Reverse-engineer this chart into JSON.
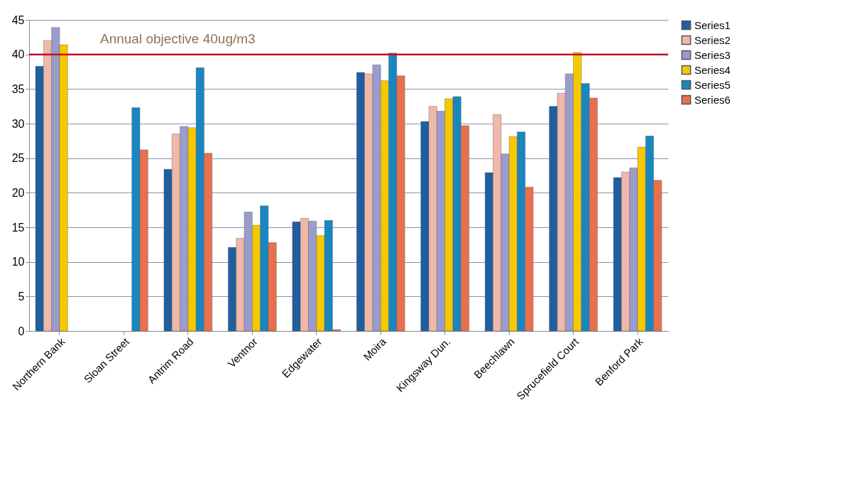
{
  "chart_data": {
    "type": "bar",
    "categories": [
      "Northern Bank",
      "Sloan Street",
      "Antrim Road",
      "Ventnor",
      "Edgewater",
      "Moira",
      "Kingsway Dun.",
      "Beechlawn",
      "Sprucefield Court",
      "Benford Park"
    ],
    "series": [
      {
        "name": "Series1",
        "color": "#1f5fa0",
        "values": [
          38.3,
          null,
          23.4,
          12.1,
          15.8,
          37.4,
          30.3,
          22.9,
          32.5,
          22.2
        ]
      },
      {
        "name": "Series2",
        "color": "#f0b8a8",
        "values": [
          42.0,
          null,
          28.5,
          13.4,
          16.3,
          37.2,
          32.5,
          31.3,
          34.4,
          23.0
        ]
      },
      {
        "name": "Series3",
        "color": "#9a9ccc",
        "values": [
          43.9,
          null,
          29.6,
          17.2,
          15.9,
          38.5,
          31.8,
          25.6,
          37.2,
          23.6
        ]
      },
      {
        "name": "Series4",
        "color": "#f5c800",
        "values": [
          41.4,
          null,
          29.4,
          15.3,
          13.8,
          36.2,
          33.6,
          28.1,
          40.3,
          26.6
        ]
      },
      {
        "name": "Series5",
        "color": "#1a86c0",
        "values": [
          null,
          32.3,
          38.1,
          18.1,
          16.0,
          40.2,
          33.9,
          28.8,
          35.8,
          28.2
        ]
      },
      {
        "name": "Series6",
        "color": "#e8704f",
        "values": [
          null,
          26.2,
          25.7,
          12.8,
          0.2,
          36.9,
          29.7,
          20.8,
          33.7,
          21.8
        ]
      }
    ],
    "ylim": [
      0,
      45
    ],
    "yticks": [
      0,
      5,
      10,
      15,
      20,
      25,
      30,
      35,
      40,
      45
    ],
    "ref_lines": [
      {
        "axis": "y",
        "value": 40,
        "label": "Annual objective 40ug/m3",
        "color": "#c0102a"
      }
    ],
    "grid": "y",
    "legend": "right"
  }
}
